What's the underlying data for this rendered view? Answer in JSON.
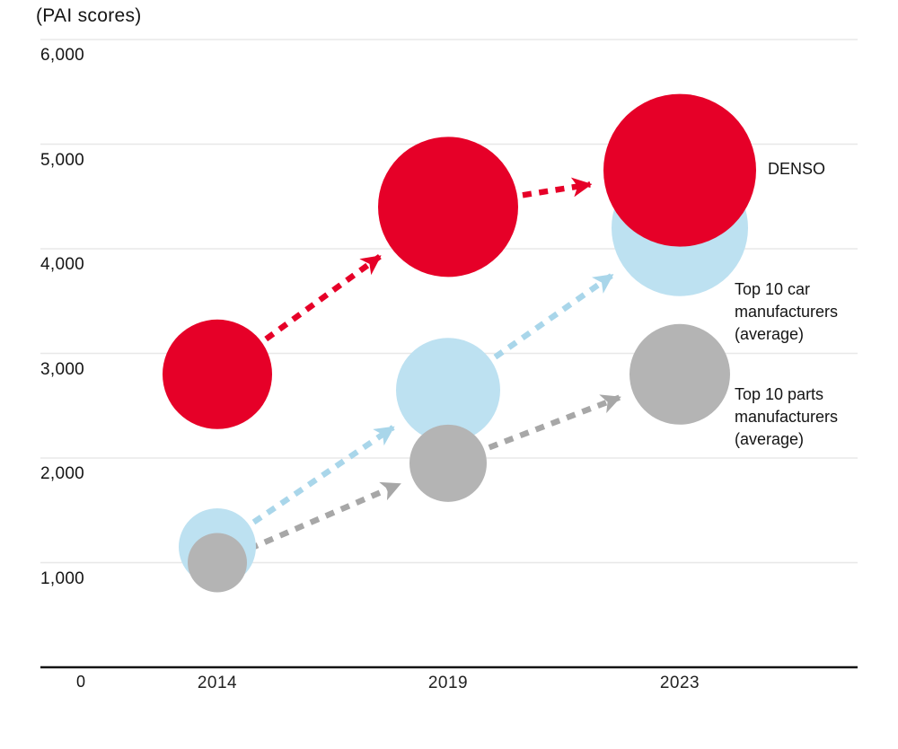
{
  "title": "(PAI scores)",
  "origin_label": "0",
  "chart_data": {
    "type": "bubble",
    "title": "(PAI scores)",
    "x_categories": [
      "2014",
      "2019",
      "2023"
    ],
    "y_axis": {
      "label": "PAI scores",
      "range": [
        0,
        6000
      ],
      "grid": true,
      "ticks": [
        {
          "label": "6,000",
          "value": 6000
        },
        {
          "label": "5,000",
          "value": 5000
        },
        {
          "label": "4,000",
          "value": 4000
        },
        {
          "label": "3,000",
          "value": 3000
        },
        {
          "label": "2,000",
          "value": 2000
        },
        {
          "label": "1,000",
          "value": 1000
        }
      ],
      "origin": {
        "label": "0",
        "value": 0
      }
    },
    "series": [
      {
        "name": "Top 10 car manufacturers (average)",
        "color": "#bde1f1",
        "arrow_color": "#a9d6ea",
        "annotation": [
          "Top 10 car",
          "manufacturers",
          "(average)"
        ],
        "points": [
          {
            "year": "2014",
            "value": 1150,
            "r": 43
          },
          {
            "year": "2019",
            "value": 2650,
            "r": 58
          },
          {
            "year": "2023",
            "value": 4200,
            "r": 76
          }
        ]
      },
      {
        "name": "Top 10 parts manufacturers (average)",
        "color": "#b4b4b4",
        "arrow_color": "#a7a7a7",
        "annotation": [
          "Top 10 parts",
          "manufacturers",
          "(average)"
        ],
        "points": [
          {
            "year": "2014",
            "value": 1000,
            "r": 33
          },
          {
            "year": "2019",
            "value": 1950,
            "r": 43
          },
          {
            "year": "2023",
            "value": 2800,
            "r": 56
          }
        ]
      },
      {
        "name": "DENSO",
        "color": "#e60028",
        "arrow_color": "#e60028",
        "annotation": [
          "DENSO"
        ],
        "points": [
          {
            "year": "2014",
            "value": 2800,
            "r": 61
          },
          {
            "year": "2019",
            "value": 4400,
            "r": 78
          },
          {
            "year": "2023",
            "value": 4750,
            "r": 85
          }
        ]
      }
    ],
    "colors": {
      "grid": "#e8e8e8",
      "axis": "#141414",
      "denso_red": "#e60028",
      "car_blue": "#bde1f1",
      "parts_gray": "#b4b4b4"
    }
  }
}
